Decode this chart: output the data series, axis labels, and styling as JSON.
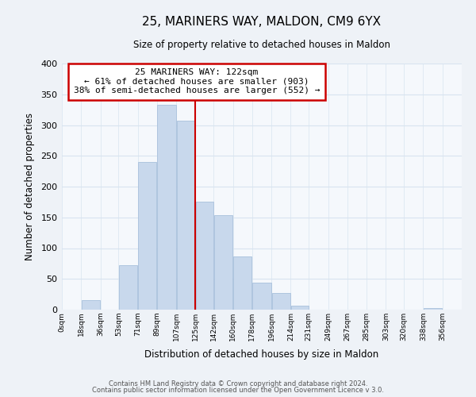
{
  "title": "25, MARINERS WAY, MALDON, CM9 6YX",
  "subtitle": "Size of property relative to detached houses in Maldon",
  "xlabel": "Distribution of detached houses by size in Maldon",
  "ylabel": "Number of detached properties",
  "bar_left_edges": [
    0,
    18,
    36,
    53,
    71,
    89,
    107,
    125,
    142,
    160,
    178,
    196,
    214,
    231,
    249,
    267,
    285,
    303,
    320,
    338
  ],
  "bar_widths": [
    18,
    18,
    17,
    18,
    18,
    18,
    18,
    17,
    18,
    18,
    18,
    18,
    17,
    18,
    18,
    18,
    18,
    17,
    18,
    18
  ],
  "bar_heights": [
    0,
    15,
    0,
    72,
    240,
    333,
    307,
    175,
    153,
    87,
    44,
    27,
    7,
    0,
    0,
    0,
    0,
    0,
    0,
    2
  ],
  "bar_color": "#c8d8ec",
  "bar_edge_color": "#a8c0dc",
  "grid_color": "#d8e4f0",
  "vline_x": 125,
  "vline_color": "#cc0000",
  "annotation_text": "25 MARINERS WAY: 122sqm\n← 61% of detached houses are smaller (903)\n38% of semi-detached houses are larger (552) →",
  "annotation_box_color": "#ffffff",
  "annotation_box_edge_color": "#cc0000",
  "tick_labels": [
    "0sqm",
    "18sqm",
    "36sqm",
    "53sqm",
    "71sqm",
    "89sqm",
    "107sqm",
    "125sqm",
    "142sqm",
    "160sqm",
    "178sqm",
    "196sqm",
    "214sqm",
    "231sqm",
    "249sqm",
    "267sqm",
    "285sqm",
    "303sqm",
    "320sqm",
    "338sqm",
    "356sqm"
  ],
  "tick_positions": [
    0,
    18,
    36,
    53,
    71,
    89,
    107,
    125,
    142,
    160,
    178,
    196,
    214,
    231,
    249,
    267,
    285,
    303,
    320,
    338,
    356
  ],
  "ylim": [
    0,
    400
  ],
  "xlim": [
    0,
    374
  ],
  "yticks": [
    0,
    50,
    100,
    150,
    200,
    250,
    300,
    350,
    400
  ],
  "footer1": "Contains HM Land Registry data © Crown copyright and database right 2024.",
  "footer2": "Contains public sector information licensed under the Open Government Licence v 3.0.",
  "background_color": "#eef2f7",
  "plot_bg_color": "#f5f8fc"
}
